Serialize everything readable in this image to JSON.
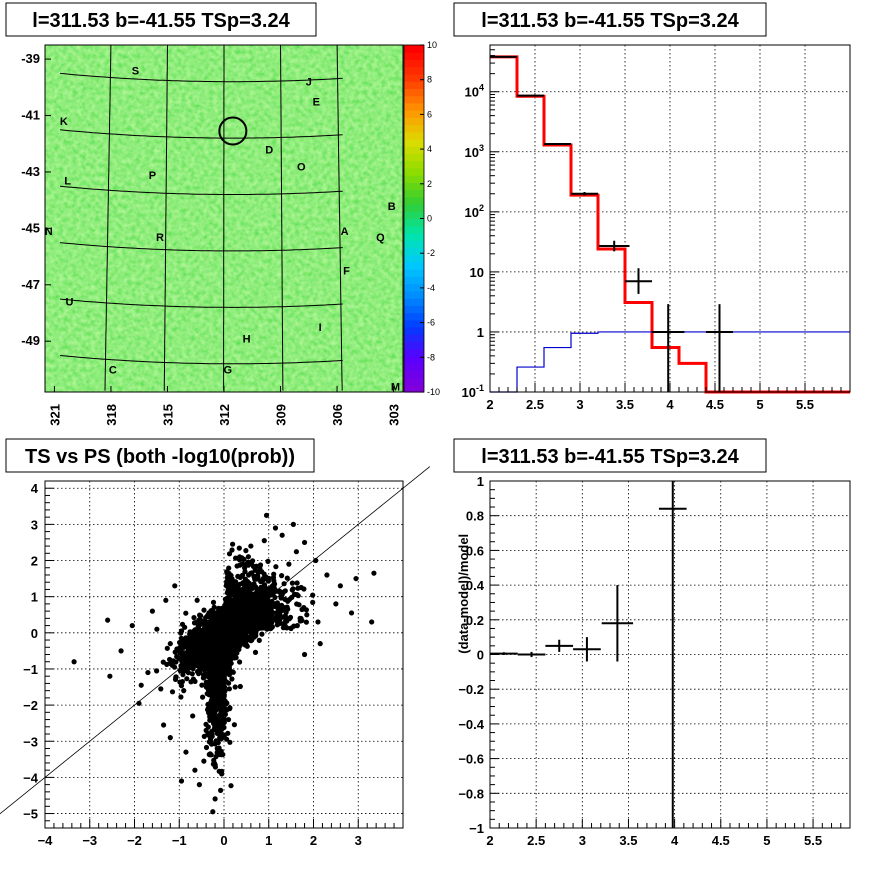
{
  "chart_data": [
    {
      "type": "heatmap",
      "title": "l=311.53 b=-41.55 TSp=3.24",
      "xlim": [
        321.5,
        302.5
      ],
      "ylim": [
        -50.8,
        -38.5
      ],
      "x_ticks": [
        321,
        318,
        315,
        312,
        309,
        306,
        303
      ],
      "y_ticks": [
        -39,
        -41,
        -43,
        -45,
        -47,
        -49
      ],
      "colorbar": {
        "min": -10,
        "max": 10,
        "ticks": [
          10,
          8,
          6,
          4,
          2,
          0,
          -2,
          -4,
          -6,
          -8,
          -10
        ]
      },
      "source_circle": {
        "l": 311.53,
        "b": -41.55
      },
      "labels": [
        {
          "text": "S",
          "l": 316.7,
          "b": -39.4
        },
        {
          "text": "J",
          "l": 307.5,
          "b": -39.8
        },
        {
          "text": "E",
          "l": 307.1,
          "b": -40.5
        },
        {
          "text": "K",
          "l": 320.5,
          "b": -41.2
        },
        {
          "text": "D",
          "l": 309.6,
          "b": -42.2
        },
        {
          "text": "O",
          "l": 307.9,
          "b": -42.8
        },
        {
          "text": "P",
          "l": 315.8,
          "b": -43.1
        },
        {
          "text": "L",
          "l": 320.3,
          "b": -43.3
        },
        {
          "text": "B",
          "l": 303.1,
          "b": -44.2
        },
        {
          "text": "N",
          "l": 321.3,
          "b": -45.1
        },
        {
          "text": "A",
          "l": 305.6,
          "b": -45.1
        },
        {
          "text": "R",
          "l": 315.4,
          "b": -45.3
        },
        {
          "text": "Q",
          "l": 303.7,
          "b": -45.3
        },
        {
          "text": "F",
          "l": 305.5,
          "b": -46.5
        },
        {
          "text": "U",
          "l": 320.2,
          "b": -47.6
        },
        {
          "text": "I",
          "l": 306.9,
          "b": -48.5
        },
        {
          "text": "H",
          "l": 310.8,
          "b": -48.9
        },
        {
          "text": "C",
          "l": 317.9,
          "b": -50.0
        },
        {
          "text": "G",
          "l": 311.8,
          "b": -50.0
        },
        {
          "text": "M",
          "l": 302.9,
          "b": -50.6
        }
      ]
    },
    {
      "type": "line",
      "title": "l=311.53 b=-41.55 TSp=3.24",
      "log_y": true,
      "xlim": [
        2,
        6
      ],
      "ylim": [
        0.1,
        60000
      ],
      "x_ticks": [
        2,
        2.5,
        3,
        3.5,
        4,
        4.5,
        5,
        5.5
      ],
      "y_ticks": [
        {
          "value": 0.1,
          "label": "10^-1"
        },
        {
          "value": 1,
          "label": "1"
        },
        {
          "value": 10,
          "label": "10"
        },
        {
          "value": 100,
          "label": "10^2"
        },
        {
          "value": 1000,
          "label": "10^3"
        },
        {
          "value": 10000,
          "label": "10^4"
        }
      ],
      "bin_edges": [
        2.0,
        2.3,
        2.6,
        2.9,
        3.2,
        3.5,
        3.8,
        4.1,
        4.4,
        4.7,
        5.0,
        5.3,
        5.6,
        5.9,
        6.0
      ],
      "series": [
        {
          "values": [
            38000,
            8400,
            1300,
            190,
            24,
            3.1,
            0.55,
            0.3,
            0.1,
            0.1,
            0.1,
            0.1,
            0.1,
            0.1
          ]
        },
        {
          "values": [
            0.1,
            0.26,
            0.55,
            0.95,
            1.0,
            1.0,
            1.0,
            1.0,
            1.0,
            1.0,
            1.0,
            1.0,
            1.0,
            1.0
          ]
        }
      ],
      "data_points": [
        {
          "x": 2.15,
          "y": 38000,
          "xerr": 0.15,
          "ylo": 37600,
          "yhi": 38400
        },
        {
          "x": 2.45,
          "y": 8600,
          "xerr": 0.15,
          "ylo": 8400,
          "yhi": 8800
        },
        {
          "x": 2.75,
          "y": 1350,
          "xerr": 0.15,
          "ylo": 1300,
          "yhi": 1400
        },
        {
          "x": 3.05,
          "y": 200,
          "xerr": 0.15,
          "ylo": 186,
          "yhi": 214
        },
        {
          "x": 3.38,
          "y": 27,
          "xerr": 0.17,
          "ylo": 22,
          "yhi": 33
        },
        {
          "x": 3.65,
          "y": 7,
          "xerr": 0.15,
          "ylo": 4.3,
          "yhi": 11.5
        },
        {
          "x": 3.98,
          "y": 1.0,
          "xerr": 0.18,
          "ylo": 0.1,
          "yhi": 2.9
        },
        {
          "x": 4.55,
          "y": 1.0,
          "xerr": 0.15,
          "ylo": 0.1,
          "yhi": 2.9
        }
      ]
    },
    {
      "type": "scatter",
      "title": "TS vs PS (both -log10(prob))",
      "xlim": [
        -4,
        4
      ],
      "ylim": [
        -5.4,
        4.2
      ],
      "x_ticks": [
        -4,
        -3,
        -2,
        -1,
        0,
        1,
        2,
        3
      ],
      "y_ticks": [
        4,
        3,
        2,
        1,
        0,
        -1,
        -2,
        -3,
        -4,
        -5
      ],
      "reference_line": "y = x",
      "sample_points": [
        [
          -3.35,
          -0.8
        ],
        [
          -2.55,
          -1.2
        ],
        [
          -2.6,
          0.35
        ],
        [
          -1.9,
          -1.95
        ],
        [
          -1.85,
          -1.45
        ],
        [
          -1.35,
          -2.55
        ],
        [
          -1.2,
          -2.9
        ],
        [
          -0.95,
          -4.1
        ],
        [
          -0.85,
          -3.3
        ],
        [
          -0.65,
          -3.8
        ],
        [
          -0.55,
          -4.2
        ],
        [
          -0.45,
          -3.55
        ],
        [
          -0.3,
          -3.0
        ],
        [
          -0.25,
          -4.95
        ],
        [
          -0.15,
          -3.2
        ],
        [
          -0.05,
          -2.6
        ],
        [
          0.35,
          2.1
        ],
        [
          0.6,
          2.4
        ],
        [
          0.9,
          2.55
        ],
        [
          1.15,
          2.9
        ],
        [
          1.3,
          2.7
        ],
        [
          1.55,
          3.0
        ],
        [
          0.95,
          3.25
        ],
        [
          1.8,
          2.5
        ],
        [
          2.05,
          2.0
        ],
        [
          2.3,
          1.6
        ],
        [
          2.6,
          1.3
        ],
        [
          2.95,
          1.5
        ],
        [
          3.35,
          1.65
        ],
        [
          3.3,
          0.3
        ],
        [
          2.85,
          0.55
        ],
        [
          2.5,
          0.8
        ],
        [
          1.0,
          1.2
        ],
        [
          1.7,
          0.4
        ],
        [
          2.1,
          0.3
        ],
        [
          -1.3,
          0.9
        ],
        [
          -1.6,
          0.6
        ],
        [
          -2.05,
          0.2
        ],
        [
          -2.3,
          -0.5
        ],
        [
          -1.7,
          -1.1
        ],
        [
          -0.9,
          -1.6
        ],
        [
          -0.7,
          -2.3
        ],
        [
          -1.1,
          1.3
        ],
        [
          -0.6,
          0.9
        ],
        [
          0.55,
          1.6
        ],
        [
          1.45,
          1.9
        ],
        [
          2.15,
          -0.3
        ],
        [
          1.8,
          -0.6
        ],
        [
          0.25,
          -1.5
        ],
        [
          -0.2,
          -1.9
        ],
        [
          0.1,
          -2.4
        ],
        [
          -0.4,
          -2.7
        ],
        [
          -1.5,
          0.1
        ],
        [
          -0.75,
          -0.35
        ],
        [
          -1.2,
          -0.3
        ]
      ]
    },
    {
      "type": "scatter",
      "title": "l=311.53 b=-41.55 TSp=3.24",
      "ylabel": "(data-model)/model",
      "xlim": [
        2,
        5.9
      ],
      "ylim": [
        -1,
        1
      ],
      "x_ticks": [
        2,
        2.5,
        3,
        3.5,
        4,
        4.5,
        5,
        5.5
      ],
      "y_ticks": [
        1,
        0.8,
        0.6,
        0.4,
        0.2,
        0,
        -0.2,
        -0.4,
        -0.6,
        -0.8,
        -1
      ],
      "data_points": [
        {
          "x": 2.15,
          "y": 0.005,
          "xerr": 0.15,
          "yerr": 0.008
        },
        {
          "x": 2.45,
          "y": 0.0,
          "xerr": 0.15,
          "yerr": 0.015
        },
        {
          "x": 2.75,
          "y": 0.05,
          "xerr": 0.15,
          "yerr": 0.035
        },
        {
          "x": 3.05,
          "y": 0.03,
          "xerr": 0.15,
          "yerr": 0.07
        },
        {
          "x": 3.38,
          "y": 0.18,
          "xerr": 0.17,
          "yerr": 0.22
        },
        {
          "x": 3.98,
          "y": 0.84,
          "xerr": 0.15,
          "yerr": 2.0
        }
      ]
    }
  ]
}
